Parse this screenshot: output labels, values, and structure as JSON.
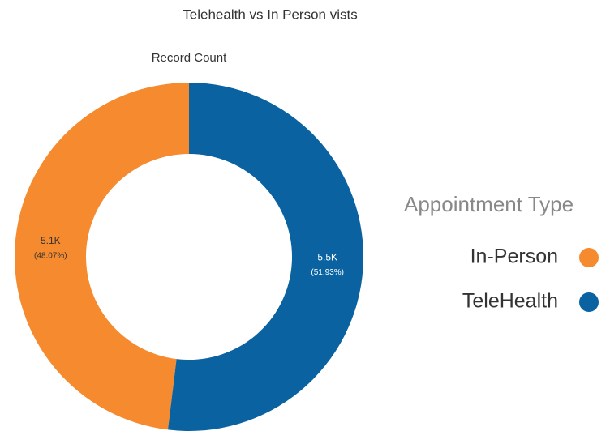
{
  "chart_data": {
    "type": "donut",
    "title": "Telehealth vs In Person vists",
    "subtitle": "Record Count",
    "legend_title": "Appointment Type",
    "categories": [
      "In-Person",
      "TeleHealth"
    ],
    "colors": [
      "#f58a2f",
      "#0a63a0"
    ],
    "values": [
      48.07,
      51.93
    ],
    "value_labels": [
      "(48.07%)",
      "(51.93%)"
    ],
    "counts": [
      5100,
      5500
    ],
    "count_labels": [
      "5.1K",
      "5.5K"
    ],
    "legend": "right"
  }
}
